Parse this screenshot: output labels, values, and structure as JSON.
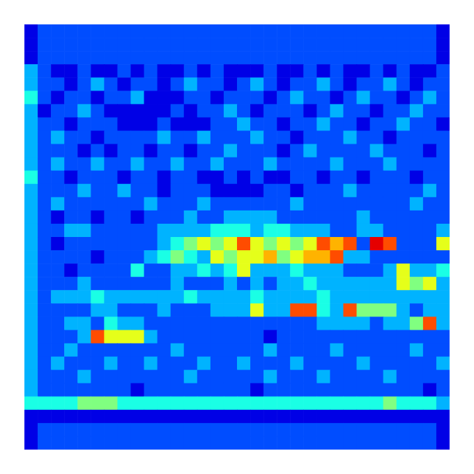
{
  "chart_data": {
    "type": "heatmap",
    "tick_labels": false,
    "zlim": [
      0,
      10
    ],
    "cells": [
      [
        1,
        2,
        2,
        2,
        2,
        2,
        2,
        2,
        2,
        2,
        2,
        2,
        2,
        2,
        2,
        2,
        2,
        2,
        2,
        2,
        2,
        2,
        2,
        2,
        2,
        2,
        2,
        2,
        2,
        2,
        2,
        1
      ],
      [
        1,
        2,
        2,
        2,
        2,
        2,
        2,
        2,
        2,
        2,
        2,
        2,
        2,
        2,
        2,
        2,
        2,
        2,
        2,
        2,
        2,
        2,
        2,
        2,
        2,
        2,
        2,
        2,
        2,
        2,
        2,
        1
      ],
      [
        1,
        2,
        2,
        2,
        2,
        2,
        2,
        2,
        2,
        2,
        2,
        2,
        2,
        2,
        2,
        2,
        2,
        2,
        2,
        2,
        2,
        2,
        2,
        2,
        2,
        2,
        2,
        2,
        2,
        2,
        2,
        1
      ],
      [
        3,
        2,
        1,
        1,
        2,
        1,
        1,
        2,
        1,
        2,
        1,
        1,
        2,
        1,
        2,
        1,
        1,
        1,
        2,
        1,
        1,
        2,
        1,
        2,
        1,
        1,
        2,
        1,
        2,
        1,
        1,
        2
      ],
      [
        3,
        2,
        2,
        1,
        2,
        3,
        2,
        1,
        2,
        2,
        1,
        2,
        3,
        2,
        2,
        1,
        2,
        3,
        2,
        1,
        2,
        2,
        3,
        2,
        1,
        2,
        2,
        3,
        2,
        1,
        2,
        2
      ],
      [
        4,
        2,
        1,
        2,
        2,
        1,
        2,
        2,
        3,
        1,
        1,
        1,
        2,
        2,
        1,
        2,
        2,
        2,
        1,
        2,
        3,
        2,
        2,
        1,
        2,
        3,
        2,
        2,
        1,
        2,
        3,
        2
      ],
      [
        3,
        1,
        2,
        2,
        3,
        2,
        1,
        1,
        1,
        1,
        1,
        2,
        1,
        2,
        2,
        3,
        2,
        1,
        2,
        2,
        2,
        1,
        2,
        3,
        2,
        2,
        1,
        2,
        2,
        3,
        2,
        2
      ],
      [
        3,
        2,
        2,
        1,
        2,
        2,
        2,
        1,
        1,
        1,
        2,
        1,
        1,
        1,
        2,
        2,
        3,
        2,
        2,
        1,
        2,
        2,
        3,
        2,
        2,
        1,
        2,
        2,
        3,
        2,
        2,
        1
      ],
      [
        3,
        2,
        3,
        2,
        2,
        1,
        2,
        2,
        2,
        2,
        3,
        2,
        2,
        3,
        2,
        2,
        2,
        3,
        2,
        2,
        1,
        2,
        2,
        2,
        3,
        2,
        2,
        1,
        2,
        2,
        2,
        2
      ],
      [
        3,
        2,
        2,
        2,
        1,
        2,
        1,
        2,
        2,
        1,
        2,
        2,
        1,
        2,
        2,
        3,
        2,
        2,
        2,
        1,
        2,
        3,
        2,
        2,
        2,
        2,
        3,
        2,
        2,
        2,
        1,
        2
      ],
      [
        3,
        2,
        3,
        2,
        2,
        3,
        2,
        2,
        3,
        2,
        2,
        3,
        2,
        2,
        3,
        2,
        2,
        2,
        3,
        2,
        2,
        2,
        2,
        3,
        2,
        2,
        2,
        3,
        2,
        2,
        2,
        2
      ],
      [
        4,
        2,
        2,
        1,
        2,
        2,
        2,
        1,
        2,
        2,
        1,
        2,
        2,
        1,
        1,
        2,
        1,
        2,
        1,
        1,
        2,
        2,
        1,
        2,
        2,
        1,
        2,
        2,
        2,
        1,
        2,
        2
      ],
      [
        3,
        2,
        2,
        2,
        3,
        2,
        2,
        3,
        2,
        2,
        1,
        2,
        2,
        2,
        1,
        1,
        1,
        1,
        2,
        2,
        1,
        2,
        2,
        2,
        3,
        2,
        2,
        2,
        2,
        2,
        3,
        2
      ],
      [
        3,
        2,
        3,
        2,
        2,
        2,
        2,
        2,
        2,
        3,
        2,
        2,
        2,
        3,
        2,
        2,
        2,
        2,
        2,
        2,
        3,
        2,
        2,
        2,
        2,
        2,
        2,
        2,
        2,
        3,
        2,
        2
      ],
      [
        3,
        2,
        1,
        2,
        2,
        1,
        2,
        2,
        1,
        2,
        2,
        2,
        3,
        2,
        2,
        3,
        3,
        3,
        3,
        2,
        2,
        2,
        2,
        2,
        2,
        3,
        2,
        2,
        2,
        2,
        2,
        2
      ],
      [
        3,
        2,
        2,
        3,
        3,
        2,
        2,
        2,
        2,
        2,
        3,
        3,
        3,
        3,
        4,
        4,
        4,
        3,
        4,
        4,
        3,
        3,
        3,
        2,
        2,
        3,
        3,
        2,
        2,
        2,
        2,
        3
      ],
      [
        3,
        2,
        1,
        2,
        2,
        2,
        2,
        2,
        2,
        2,
        3,
        4,
        5,
        6,
        5,
        6,
        8,
        6,
        5,
        6,
        5,
        6,
        8,
        7,
        8,
        2,
        9,
        8,
        2,
        2,
        2,
        6
      ],
      [
        3,
        2,
        2,
        2,
        2,
        1,
        2,
        2,
        2,
        3,
        4,
        5,
        4,
        3,
        6,
        5,
        6,
        6,
        7,
        5,
        6,
        7,
        7,
        8,
        3,
        3,
        2,
        2,
        2,
        2,
        2,
        2
      ],
      [
        3,
        2,
        2,
        1,
        2,
        2,
        2,
        2,
        4,
        2,
        2,
        3,
        3,
        4,
        3,
        4,
        6,
        3,
        3,
        3,
        4,
        3,
        3,
        3,
        2,
        2,
        2,
        3,
        6,
        3,
        3,
        4
      ],
      [
        3,
        2,
        2,
        2,
        3,
        2,
        2,
        2,
        2,
        2,
        2,
        3,
        2,
        2,
        2,
        3,
        2,
        3,
        2,
        3,
        3,
        4,
        3,
        3,
        3,
        3,
        3,
        3,
        6,
        5,
        6,
        3
      ],
      [
        3,
        2,
        3,
        3,
        3,
        4,
        3,
        3,
        3,
        3,
        3,
        3,
        4,
        3,
        3,
        3,
        3,
        4,
        3,
        3,
        3,
        3,
        4,
        3,
        3,
        3,
        3,
        3,
        3,
        3,
        3,
        3
      ],
      [
        3,
        2,
        2,
        2,
        2,
        3,
        3,
        2,
        2,
        2,
        3,
        2,
        2,
        2,
        3,
        3,
        3,
        6,
        3,
        3,
        8,
        8,
        4,
        3,
        8,
        5,
        5,
        5,
        3,
        2,
        3,
        3
      ],
      [
        3,
        2,
        2,
        3,
        3,
        2,
        4,
        3,
        3,
        2,
        2,
        2,
        2,
        2,
        2,
        2,
        2,
        2,
        2,
        2,
        2,
        2,
        3,
        3,
        3,
        3,
        2,
        3,
        3,
        5,
        8,
        3
      ],
      [
        3,
        2,
        2,
        2,
        3,
        8,
        6,
        6,
        6,
        3,
        2,
        2,
        2,
        2,
        2,
        2,
        2,
        2,
        1,
        2,
        2,
        2,
        2,
        2,
        2,
        2,
        2,
        2,
        2,
        2,
        2,
        2
      ],
      [
        3,
        2,
        2,
        3,
        2,
        2,
        2,
        2,
        2,
        2,
        2,
        3,
        2,
        2,
        2,
        2,
        2,
        2,
        3,
        2,
        2,
        2,
        2,
        3,
        2,
        2,
        2,
        2,
        2,
        3,
        2,
        2
      ],
      [
        3,
        2,
        3,
        2,
        2,
        2,
        3,
        2,
        2,
        3,
        2,
        2,
        2,
        3,
        2,
        2,
        3,
        2,
        2,
        2,
        3,
        2,
        2,
        2,
        2,
        3,
        2,
        2,
        2,
        2,
        2,
        3
      ],
      [
        3,
        2,
        2,
        2,
        3,
        2,
        2,
        2,
        2,
        2,
        2,
        2,
        3,
        2,
        2,
        2,
        2,
        2,
        3,
        2,
        2,
        2,
        3,
        2,
        2,
        2,
        2,
        3,
        2,
        2,
        2,
        2
      ],
      [
        3,
        2,
        2,
        2,
        2,
        2,
        2,
        2,
        1,
        2,
        2,
        2,
        2,
        2,
        2,
        2,
        2,
        1,
        2,
        2,
        2,
        2,
        2,
        2,
        2,
        2,
        2,
        2,
        2,
        2,
        1,
        2
      ],
      [
        4,
        4,
        4,
        4,
        5,
        5,
        5,
        4,
        4,
        4,
        4,
        4,
        4,
        4,
        4,
        4,
        4,
        4,
        4,
        4,
        4,
        4,
        4,
        4,
        4,
        4,
        4,
        5,
        4,
        4,
        4,
        3
      ],
      [
        1,
        1,
        1,
        1,
        1,
        1,
        1,
        1,
        1,
        1,
        1,
        1,
        1,
        1,
        1,
        1,
        1,
        1,
        1,
        1,
        1,
        1,
        1,
        1,
        1,
        1,
        1,
        1,
        1,
        1,
        1,
        1
      ],
      [
        1,
        2,
        2,
        2,
        2,
        2,
        2,
        2,
        2,
        2,
        2,
        2,
        2,
        2,
        2,
        2,
        2,
        2,
        2,
        2,
        2,
        2,
        2,
        2,
        2,
        2,
        2,
        2,
        2,
        2,
        2,
        1
      ],
      [
        1,
        2,
        2,
        2,
        2,
        2,
        2,
        2,
        2,
        2,
        2,
        2,
        2,
        2,
        2,
        2,
        2,
        2,
        2,
        2,
        2,
        2,
        2,
        2,
        2,
        2,
        2,
        2,
        2,
        2,
        2,
        1
      ]
    ]
  }
}
